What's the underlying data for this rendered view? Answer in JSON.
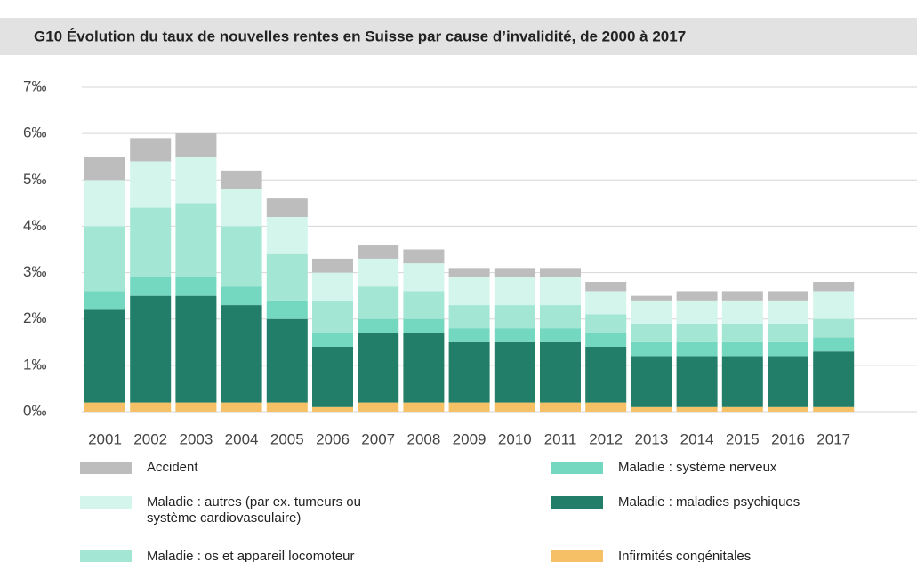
{
  "chart_data": {
    "type": "stacked_bar",
    "title": "G10  Évolution du taux de nouvelles rentes en Suisse par cause d’invalidité, de 2000 à 2017",
    "categories": [
      "2001",
      "2002",
      "2003",
      "2004",
      "2005",
      "2006",
      "2007",
      "2008",
      "2009",
      "2010",
      "2011",
      "2012",
      "2013",
      "2014",
      "2015",
      "2016",
      "2017"
    ],
    "series": [
      {
        "name": "Infirmités congénitales",
        "color": "#f5c066",
        "values": [
          0.2,
          0.2,
          0.2,
          0.2,
          0.2,
          0.1,
          0.2,
          0.2,
          0.2,
          0.2,
          0.2,
          0.2,
          0.1,
          0.1,
          0.1,
          0.1,
          0.1
        ]
      },
      {
        "name": "Maladie : maladies psychiques",
        "color": "#237e69",
        "values": [
          2.0,
          2.3,
          2.3,
          2.1,
          1.8,
          1.3,
          1.5,
          1.5,
          1.3,
          1.3,
          1.3,
          1.2,
          1.1,
          1.1,
          1.1,
          1.1,
          1.2
        ]
      },
      {
        "name": "Maladie : système nerveux",
        "color": "#74d8c0",
        "values": [
          0.4,
          0.4,
          0.4,
          0.4,
          0.4,
          0.3,
          0.3,
          0.3,
          0.3,
          0.3,
          0.3,
          0.3,
          0.3,
          0.3,
          0.3,
          0.3,
          0.3
        ]
      },
      {
        "name": "Maladie : os et appareil locomoteur",
        "color": "#a3e6d4",
        "values": [
          1.4,
          1.5,
          1.6,
          1.3,
          1.0,
          0.7,
          0.7,
          0.6,
          0.5,
          0.5,
          0.5,
          0.4,
          0.4,
          0.4,
          0.4,
          0.4,
          0.4
        ]
      },
      {
        "name": "Maladie : autres (par ex. tumeurs ou système cardiovasculaire)",
        "color": "#d3f5ec",
        "values": [
          1.0,
          1.0,
          1.0,
          0.8,
          0.8,
          0.6,
          0.6,
          0.6,
          0.6,
          0.6,
          0.6,
          0.5,
          0.5,
          0.5,
          0.5,
          0.5,
          0.6
        ]
      },
      {
        "name": "Accident",
        "color": "#bdbdbd",
        "values": [
          0.5,
          0.5,
          0.5,
          0.4,
          0.4,
          0.3,
          0.3,
          0.3,
          0.2,
          0.2,
          0.2,
          0.2,
          0.1,
          0.2,
          0.2,
          0.2,
          0.2
        ]
      }
    ],
    "ylim": [
      0,
      7
    ],
    "yticks": [
      {
        "value": 0,
        "label": "0‰"
      },
      {
        "value": 1,
        "label": "1‰"
      },
      {
        "value": 2,
        "label": "2‰"
      },
      {
        "value": 3,
        "label": "3‰"
      },
      {
        "value": 4,
        "label": "4‰"
      },
      {
        "value": 5,
        "label": "5‰"
      },
      {
        "value": 6,
        "label": "6‰"
      },
      {
        "value": 7,
        "label": "7‰"
      }
    ],
    "grid": true
  }
}
